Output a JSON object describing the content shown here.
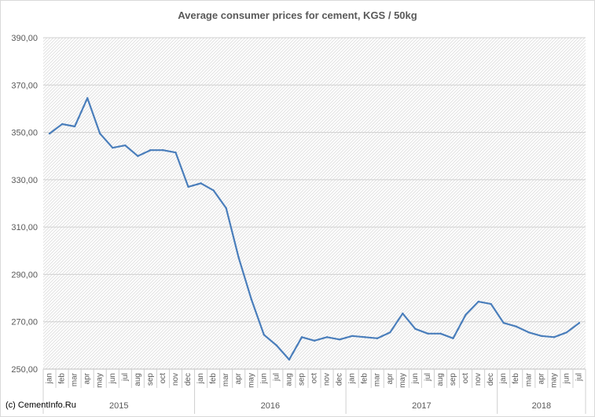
{
  "credit": "(c) CementInfo.Ru",
  "chart_data": {
    "type": "line",
    "title": "Average consumer prices for cement, KGS / 50kg",
    "xlabel": "",
    "ylabel": "",
    "ylim": [
      250,
      390
    ],
    "yticks": [
      "250,00",
      "270,00",
      "290,00",
      "310,00",
      "330,00",
      "350,00",
      "370,00",
      "390,00"
    ],
    "grid": true,
    "line_color": "#4a7ebb",
    "years": [
      {
        "label": "2015",
        "start": 0,
        "count": 12
      },
      {
        "label": "2016",
        "start": 12,
        "count": 12
      },
      {
        "label": "2017",
        "start": 24,
        "count": 12
      },
      {
        "label": "2018",
        "start": 36,
        "count": 7
      }
    ],
    "months": [
      "jan",
      "feb",
      "mar",
      "apr",
      "may",
      "jun",
      "jul",
      "aug",
      "sep",
      "oct",
      "nov",
      "dec",
      "jan",
      "feb",
      "mar",
      "apr",
      "may",
      "jun",
      "jul",
      "aug",
      "sep",
      "oct",
      "nov",
      "dec",
      "jan",
      "feb",
      "mar",
      "apr",
      "may",
      "jun",
      "jul",
      "aug",
      "sep",
      "oct",
      "nov",
      "dec",
      "jan",
      "feb",
      "mar",
      "apr",
      "may",
      "jun",
      "jul"
    ],
    "series": [
      {
        "values": [
          349.5,
          353.5,
          352.5,
          364.5,
          349.5,
          343.5,
          344.5,
          340.0,
          342.5,
          342.5,
          341.5,
          327.0,
          328.5,
          325.5,
          318.0,
          297.0,
          279.5,
          264.5,
          260.0,
          254.0,
          263.5,
          262.0,
          263.5,
          262.5,
          264.0,
          263.5,
          263.0,
          265.5,
          273.5,
          267.0,
          265.0,
          265.0,
          263.0,
          273.0,
          278.5,
          277.5,
          269.5,
          268.0,
          265.5,
          264.0,
          263.5,
          265.5,
          269.5
        ]
      }
    ]
  }
}
